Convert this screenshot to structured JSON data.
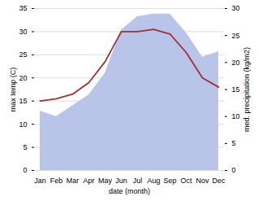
{
  "chart_data": {
    "type": "line",
    "categories": [
      "Jan",
      "Feb",
      "Mar",
      "Apr",
      "May",
      "Jun",
      "Jul",
      "Aug",
      "Sep",
      "Oct",
      "Nov",
      "Dec"
    ],
    "series": [
      {
        "type": "area",
        "axis": "y2",
        "color": "#b8c4e8",
        "values": [
          11,
          10,
          12,
          14,
          18,
          26,
          28.5,
          29,
          29,
          25.5,
          21,
          22
        ]
      },
      {
        "type": "line",
        "color": "#a03030",
        "values": [
          15.0,
          15.5,
          16.5,
          19.0,
          23.5,
          30.0,
          30.0,
          30.5,
          29.5,
          25.5,
          20.0,
          18.0
        ]
      }
    ],
    "xlabel": "date (month)",
    "ylabel": "max temp (C)",
    "y2label": "med. precipitation (kg/m2)",
    "ylim": [
      0,
      35
    ],
    "yticks": [
      0,
      5,
      10,
      15,
      20,
      25,
      30,
      35
    ],
    "y2lim": [
      0,
      30
    ],
    "y2ticks": [
      0,
      5,
      10,
      15,
      20,
      25,
      30
    ],
    "grid": true
  }
}
